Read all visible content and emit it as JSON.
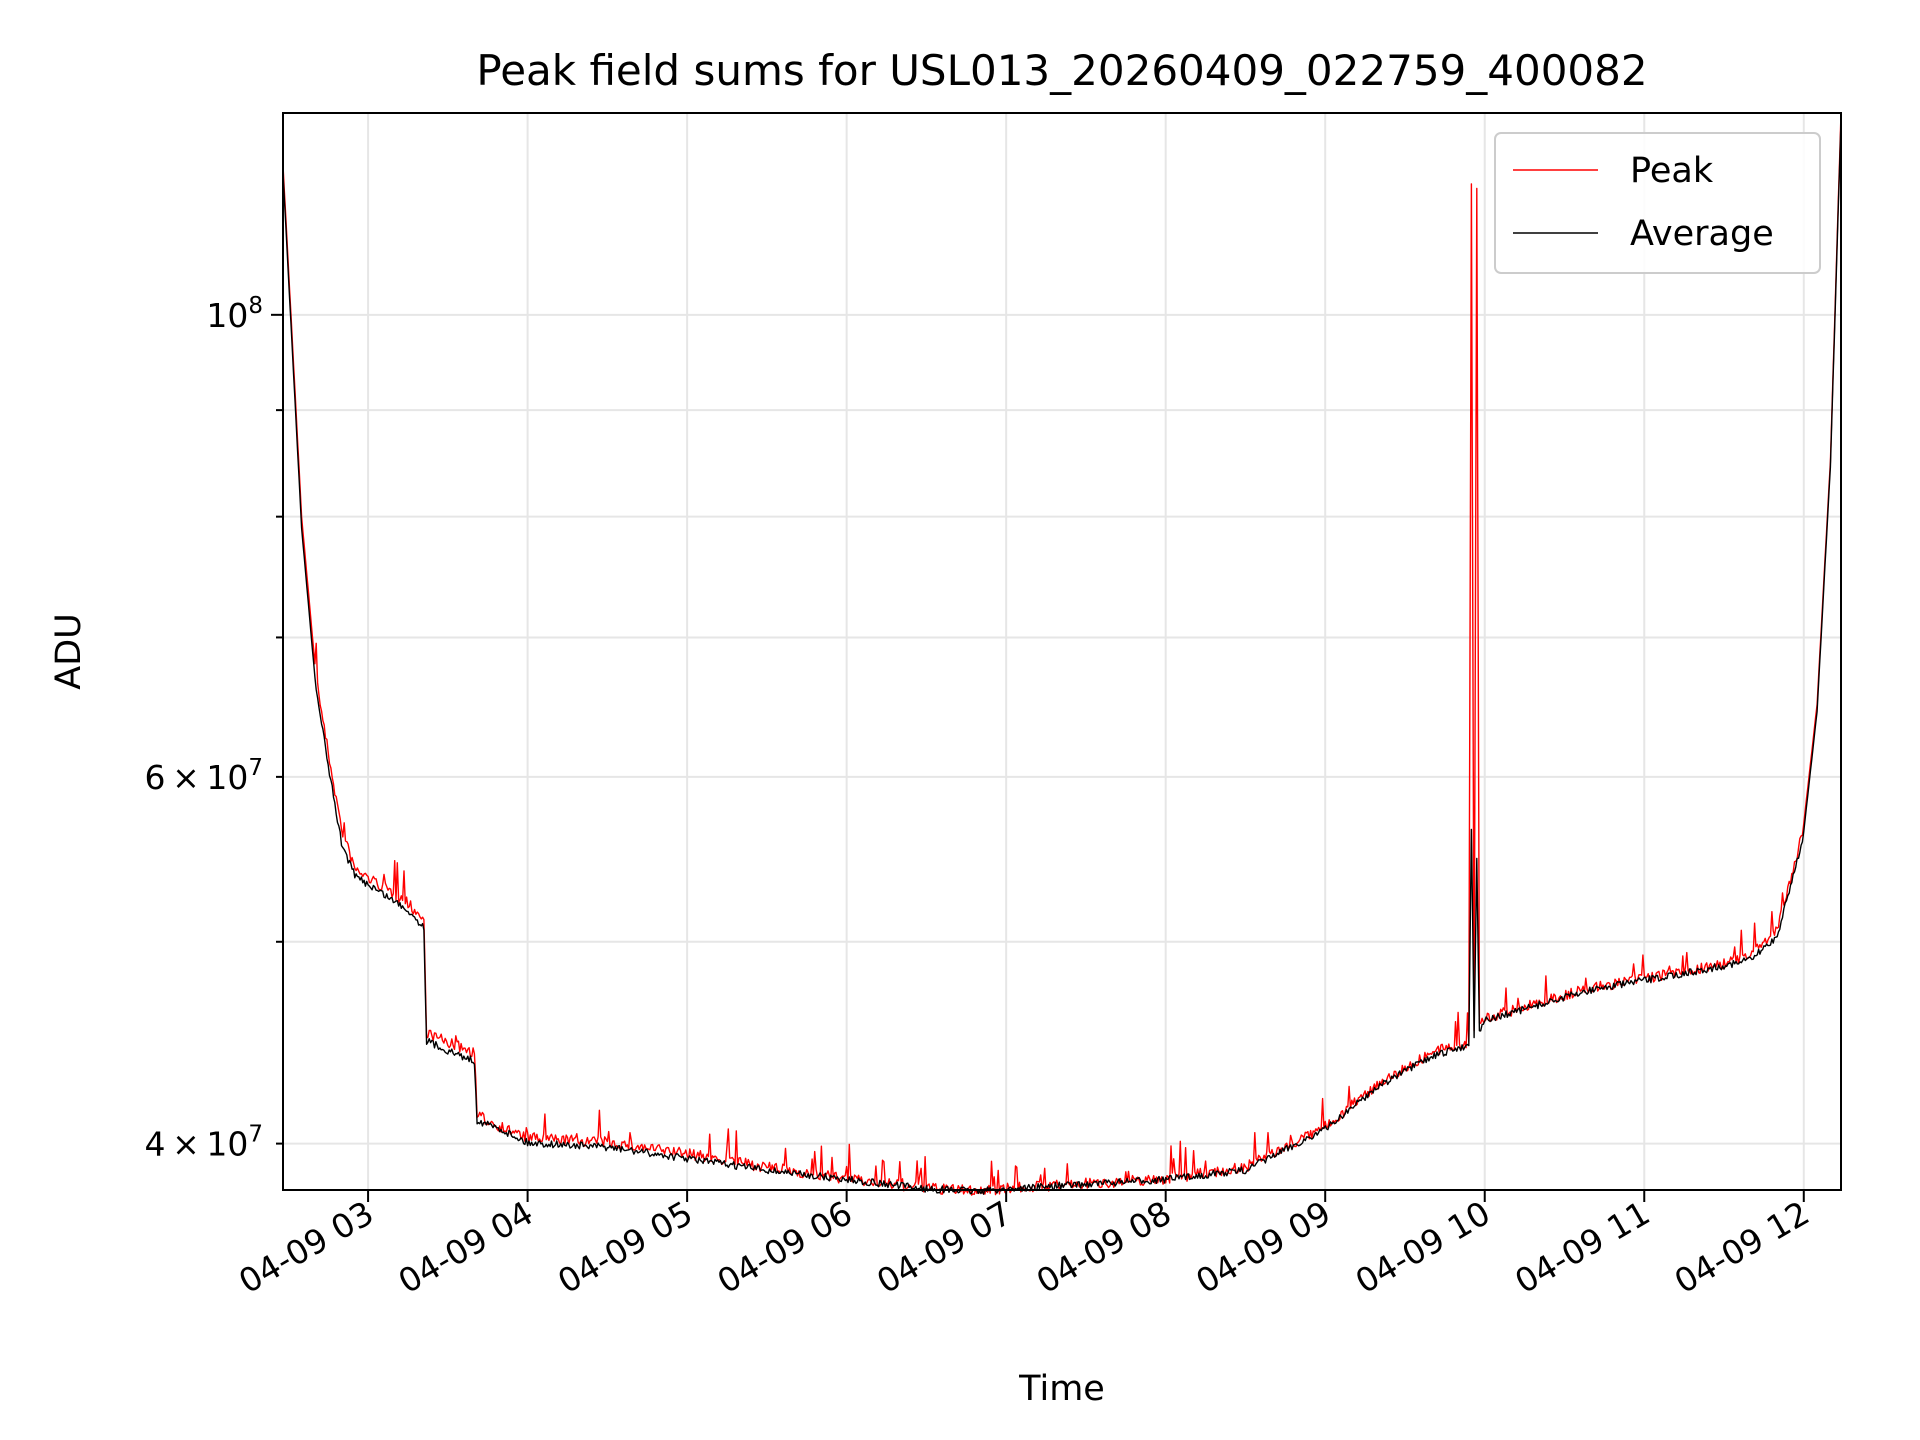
{
  "chart_data": {
    "type": "line",
    "title": "Peak field sums for USL013_20260409_022759_400082",
    "xlabel": "Time",
    "ylabel": "ADU",
    "yscale": "log",
    "xlim": [
      "04-09 02:28",
      "04-09 12:14"
    ],
    "ylim": [
      38000000,
      125000000
    ],
    "grid": true,
    "legend_position": "top-right",
    "x_tick_labels": [
      "04-09 03",
      "04-09 04",
      "04-09 05",
      "04-09 06",
      "04-09 07",
      "04-09 08",
      "04-09 09",
      "04-09 10",
      "04-09 11",
      "04-09 12"
    ],
    "y_tick_labels": {
      "major": [
        "10^8"
      ],
      "minor": [
        "6×10^7",
        "4×10^7"
      ]
    },
    "series": [
      {
        "name": "Peak",
        "color": "#ff0000",
        "x": [
          "04-09 02:28",
          "04-09 02:31",
          "04-09 02:35",
          "04-09 02:40",
          "04-09 02:45",
          "04-09 02:50",
          "04-09 02:55",
          "04-09 03:05",
          "04-09 03:15",
          "04-09 03:21",
          "04-09 03:22",
          "04-09 03:30",
          "04-09 03:40",
          "04-09 03:41",
          "04-09 03:50",
          "04-09 04:00",
          "04-09 04:30",
          "04-09 05:00",
          "04-09 05:30",
          "04-09 06:00",
          "04-09 06:30",
          "04-09 06:50",
          "04-09 07:00",
          "04-09 07:30",
          "04-09 08:00",
          "04-09 08:30",
          "04-09 09:00",
          "04-09 09:20",
          "04-09 09:40",
          "04-09 09:54",
          "04-09 09:55",
          "04-09 09:56",
          "04-09 09:57",
          "04-09 09:58",
          "04-09 09:59",
          "04-09 10:00",
          "04-09 10:20",
          "04-09 10:40",
          "04-09 11:00",
          "04-09 11:20",
          "04-09 11:40",
          "04-09 11:50",
          "04-09 12:00",
          "04-09 12:05",
          "04-09 12:10",
          "04-09 12:14"
        ],
        "y": [
          118000000,
          100000000,
          80000000,
          68000000,
          62000000,
          57000000,
          54500000,
          53500000,
          52500000,
          51500000,
          45500000,
          45000000,
          44500000,
          41500000,
          41000000,
          40500000,
          40300000,
          39800000,
          39200000,
          38700000,
          38300000,
          38200000,
          38300000,
          38500000,
          38700000,
          39200000,
          41000000,
          43000000,
          44500000,
          45000000,
          115000000,
          45500000,
          115000000,
          45800000,
          46000000,
          46200000,
          47000000,
          47800000,
          48300000,
          48800000,
          49500000,
          51000000,
          57000000,
          65000000,
          85000000,
          125000000
        ]
      },
      {
        "name": "Average",
        "color": "#000000",
        "x": [
          "04-09 02:28",
          "04-09 02:31",
          "04-09 02:35",
          "04-09 02:40",
          "04-09 02:45",
          "04-09 02:50",
          "04-09 02:55",
          "04-09 03:05",
          "04-09 03:15",
          "04-09 03:21",
          "04-09 03:22",
          "04-09 03:30",
          "04-09 03:40",
          "04-09 03:41",
          "04-09 03:50",
          "04-09 04:00",
          "04-09 04:30",
          "04-09 05:00",
          "04-09 05:30",
          "04-09 06:00",
          "04-09 06:30",
          "04-09 06:50",
          "04-09 07:00",
          "04-09 07:30",
          "04-09 08:00",
          "04-09 08:30",
          "04-09 09:00",
          "04-09 09:20",
          "04-09 09:40",
          "04-09 09:54",
          "04-09 09:55",
          "04-09 09:56",
          "04-09 09:57",
          "04-09 09:58",
          "04-09 09:59",
          "04-09 10:00",
          "04-09 10:20",
          "04-09 10:40",
          "04-09 11:00",
          "04-09 11:20",
          "04-09 11:40",
          "04-09 11:50",
          "04-09 12:00",
          "04-09 12:05",
          "04-09 12:10",
          "04-09 12:14"
        ],
        "y": [
          117000000,
          99000000,
          79000000,
          67000000,
          61000000,
          56000000,
          54000000,
          53000000,
          52000000,
          51000000,
          45000000,
          44500000,
          44000000,
          41200000,
          40800000,
          40200000,
          40000000,
          39500000,
          39000000,
          38600000,
          38200000,
          38100000,
          38200000,
          38400000,
          38600000,
          39000000,
          40800000,
          42800000,
          44200000,
          44800000,
          57000000,
          45200000,
          55000000,
          45500000,
          45800000,
          46000000,
          46800000,
          47600000,
          48100000,
          48600000,
          49200000,
          50500000,
          56500000,
          64500000,
          84500000,
          124000000
        ]
      }
    ]
  }
}
